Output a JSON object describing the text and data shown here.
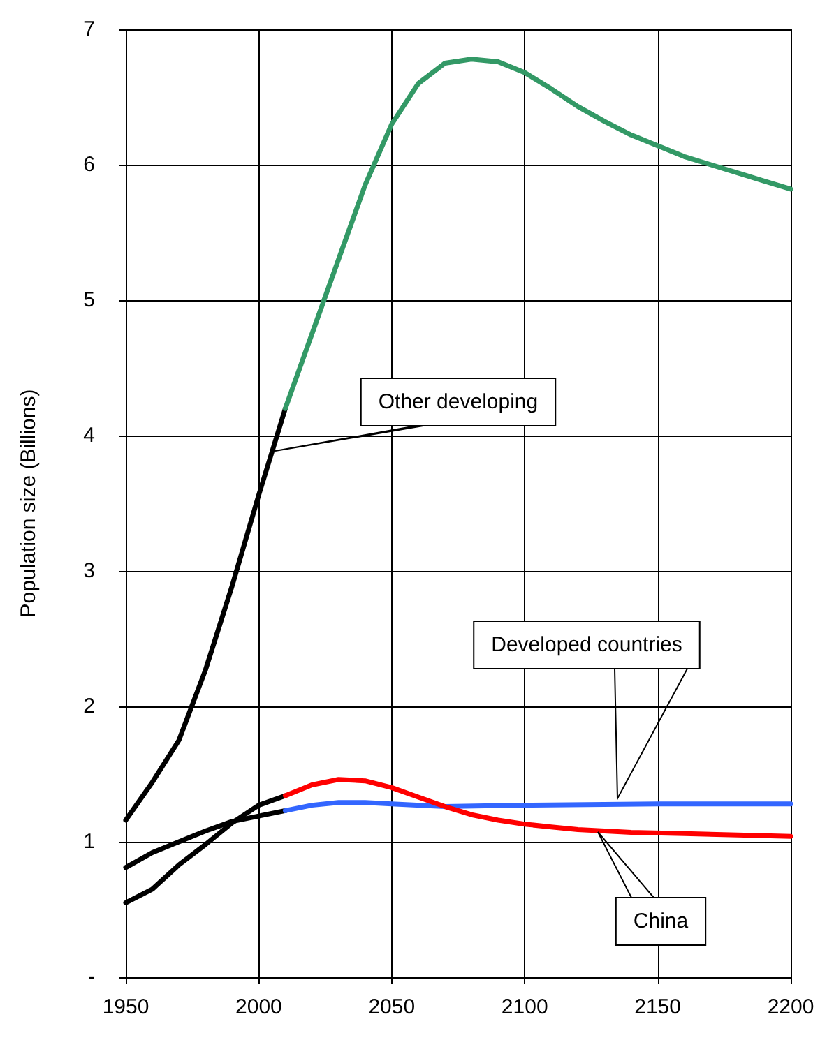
{
  "chart_data": {
    "type": "line",
    "ylabel": "Population size (Billions)",
    "xlim": [
      1950,
      2200
    ],
    "xticks": [
      1950,
      2000,
      2050,
      2100,
      2150,
      2200
    ],
    "ylim": [
      0,
      7
    ],
    "yticks": [
      {
        "value": 0,
        "label": "-"
      },
      1,
      2,
      3,
      4,
      5,
      6,
      7
    ],
    "grid": true,
    "marker": "none",
    "line_style": "solid",
    "series": [
      {
        "color": "#000000",
        "x": [
          1950,
          1960,
          1970,
          1980,
          1990,
          2000,
          2010
        ],
        "values": [
          1.16,
          1.44,
          1.75,
          2.27,
          2.89,
          3.56,
          4.2
        ]
      },
      {
        "color": "#339966",
        "x": [
          2010,
          2020,
          2030,
          2040,
          2050,
          2060,
          2070,
          2080,
          2090,
          2100,
          2110,
          2120,
          2130,
          2140,
          2150,
          2160,
          2170,
          2180,
          2190,
          2200
        ],
        "values": [
          4.2,
          4.75,
          5.3,
          5.85,
          6.3,
          6.6,
          6.75,
          6.78,
          6.76,
          6.68,
          6.56,
          6.43,
          6.32,
          6.22,
          6.14,
          6.06,
          6.0,
          5.94,
          5.88,
          5.82
        ]
      },
      {
        "color": "#000000",
        "x": [
          1950,
          1960,
          1970,
          1980,
          1990,
          2000,
          2010
        ],
        "values": [
          0.81,
          0.92,
          1.0,
          1.08,
          1.15,
          1.19,
          1.23
        ]
      },
      {
        "color": "#3366ff",
        "x": [
          2010,
          2020,
          2030,
          2040,
          2050,
          2070,
          2100,
          2150,
          2200
        ],
        "values": [
          1.23,
          1.27,
          1.29,
          1.29,
          1.28,
          1.26,
          1.27,
          1.28,
          1.28
        ]
      },
      {
        "color": "#000000",
        "x": [
          1950,
          1960,
          1970,
          1980,
          1990,
          2000,
          2010
        ],
        "values": [
          0.55,
          0.65,
          0.83,
          0.98,
          1.14,
          1.27,
          1.34
        ]
      },
      {
        "color": "#ff0000",
        "x": [
          2010,
          2020,
          2030,
          2040,
          2050,
          2060,
          2070,
          2080,
          2090,
          2100,
          2110,
          2120,
          2140,
          2160,
          2180,
          2200
        ],
        "values": [
          1.34,
          1.42,
          1.46,
          1.45,
          1.4,
          1.33,
          1.26,
          1.2,
          1.16,
          1.13,
          1.11,
          1.09,
          1.07,
          1.06,
          1.05,
          1.04
        ]
      }
    ],
    "annotations": [
      "Other developing",
      "Developed countries",
      "China"
    ]
  }
}
